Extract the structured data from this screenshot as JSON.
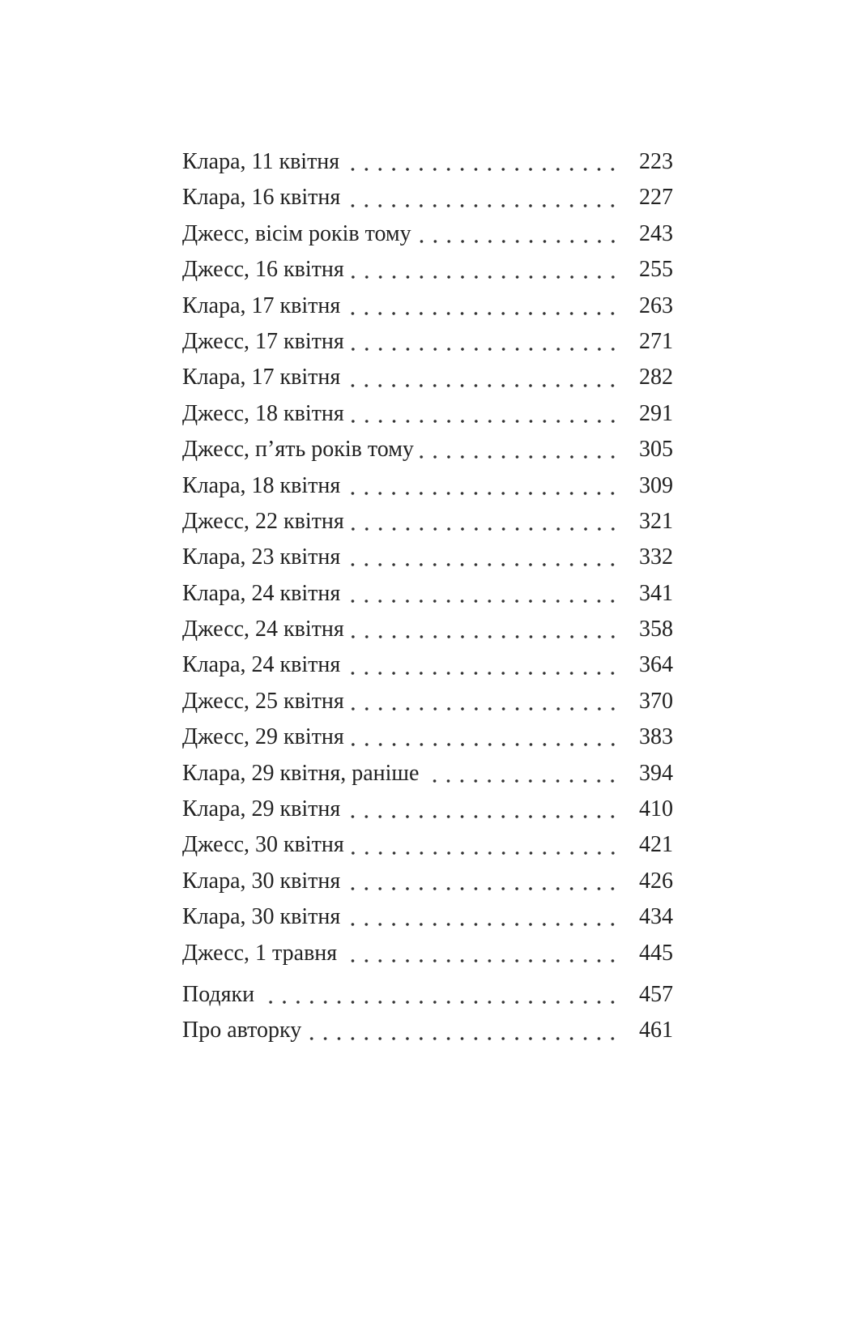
{
  "toc": {
    "entries": [
      {
        "title": "Клара, 11 квітня",
        "page": "223"
      },
      {
        "title": "Клара, 16 квітня",
        "page": "227"
      },
      {
        "title": "Джесс, вісім років тому",
        "page": "243"
      },
      {
        "title": "Джесс, 16 квітня",
        "page": "255"
      },
      {
        "title": "Клара, 17 квітня",
        "page": "263"
      },
      {
        "title": "Джесс, 17 квітня",
        "page": "271"
      },
      {
        "title": "Клара, 17 квітня",
        "page": "282"
      },
      {
        "title": "Джесс, 18 квітня",
        "page": "291"
      },
      {
        "title": "Джесс, п’ять років тому",
        "page": "305"
      },
      {
        "title": "Клара, 18 квітня",
        "page": "309"
      },
      {
        "title": "Джесс, 22 квітня",
        "page": "321"
      },
      {
        "title": "Клара, 23 квітня",
        "page": "332"
      },
      {
        "title": "Клара, 24 квітня",
        "page": "341"
      },
      {
        "title": "Джесс, 24 квітня",
        "page": "358"
      },
      {
        "title": "Клара, 24 квітня",
        "page": "364"
      },
      {
        "title": "Джесс, 25 квітня",
        "page": "370"
      },
      {
        "title": "Джесс, 29 квітня",
        "page": "383"
      },
      {
        "title": "Клара, 29 квітня, раніше",
        "page": "394"
      },
      {
        "title": "Клара, 29 квітня",
        "page": "410"
      },
      {
        "title": "Джесс, 30 квітня",
        "page": "421"
      },
      {
        "title": "Клара, 30 квітня",
        "page": "426"
      },
      {
        "title": "Клара, 30 квітня",
        "page": "434"
      },
      {
        "title": "Джесс, 1 травня",
        "page": "445"
      }
    ],
    "back_matter": [
      {
        "title": "Подяки",
        "page": "457"
      },
      {
        "title": "Про авторку",
        "page": "461"
      }
    ]
  }
}
